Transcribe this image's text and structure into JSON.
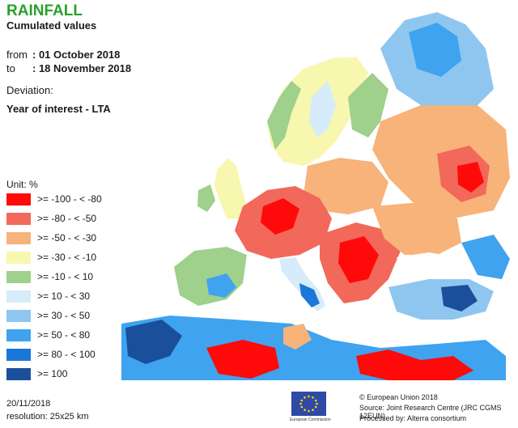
{
  "header": {
    "title": "RAINFALL",
    "subtitle": "Cumulated values",
    "from_label": "from",
    "from_value": ": 01 October 2018",
    "to_label": "to",
    "to_value": ": 18 November 2018",
    "deviation_label": "Deviation:",
    "deviation_value": "Year of interest - LTA"
  },
  "colors": {
    "title": "#2aa02a",
    "sea": "#ffffff",
    "borders": "#2a2a2a"
  },
  "legend": {
    "unit": "Unit:  %",
    "items": [
      {
        "label": ">= -100 - < -80",
        "color": "#ff0a0a"
      },
      {
        "label": ">= -80 - < -50",
        "color": "#f2685a"
      },
      {
        "label": ">= -50 - < -30",
        "color": "#f7b37a"
      },
      {
        "label": ">= -30 - < -10",
        "color": "#f7f7b0"
      },
      {
        "label": ">= -10 - < 10",
        "color": "#9fd08c"
      },
      {
        "label": ">= 10 - < 30",
        "color": "#d6ecfa"
      },
      {
        "label": ">= 30 - < 50",
        "color": "#8ec6f0"
      },
      {
        "label": ">= 50 - < 80",
        "color": "#3fa3ef"
      },
      {
        "label": ">= 80 - < 100",
        "color": "#1a78d8"
      },
      {
        "label": ">= 100",
        "color": "#1a4f9c"
      }
    ]
  },
  "footer": {
    "date": "20/11/2018",
    "resolution": "resolution:  25x25 km",
    "copyright": "© European Union 2018",
    "source": "Source: Joint Research Centre (JRC CGMS 12EUN)",
    "processed": "Processed by: Alterra consortium",
    "logo_caption": "European Commission"
  }
}
